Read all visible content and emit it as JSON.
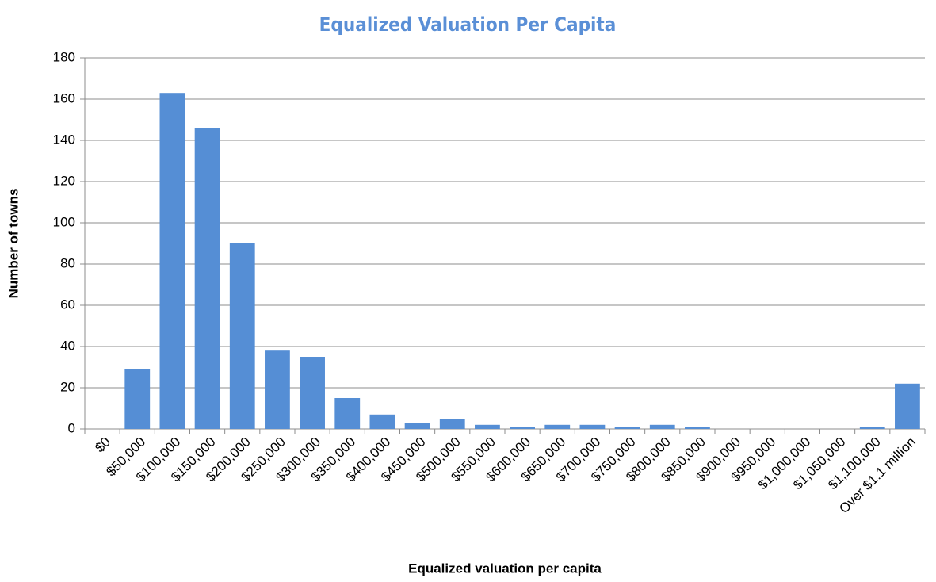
{
  "chart_data": {
    "type": "bar",
    "title": "Equalized Valuation Per Capita",
    "x_label": "Equalized valuation per capita",
    "y_label": "Number of towns",
    "categories": [
      "$0",
      "$50,000",
      "$100,000",
      "$150,000",
      "$200,000",
      "$250,000",
      "$300,000",
      "$350,000",
      "$400,000",
      "$450,000",
      "$500,000",
      "$550,000",
      "$600,000",
      "$650,000",
      "$700,000",
      "$750,000",
      "$800,000",
      "$850,000",
      "$900,000",
      "$950,000",
      "$1,000,000",
      "$1,050,000",
      "$1,100,000",
      "Over $1.1 million"
    ],
    "values": [
      0,
      29,
      163,
      146,
      90,
      38,
      35,
      15,
      7,
      3,
      5,
      2,
      1,
      2,
      2,
      1,
      2,
      1,
      0,
      0,
      0,
      0,
      1,
      22
    ],
    "color": "#558ed5",
    "ylim": [
      0,
      180
    ],
    "yticks": [
      0,
      20,
      40,
      60,
      80,
      100,
      120,
      140,
      160,
      180
    ],
    "grid": true
  }
}
